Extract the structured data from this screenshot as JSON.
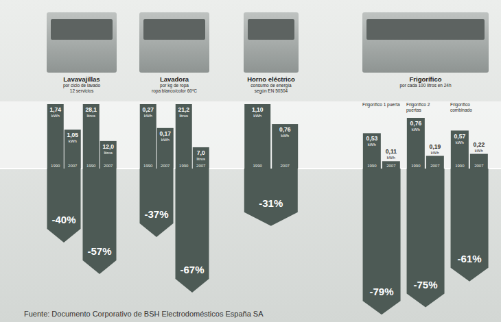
{
  "chart_data": [
    {
      "type": "bar",
      "title": "Lavavajillas",
      "subtitle": [
        "por ciclo de lavado",
        "12 servicios"
      ],
      "color": "#4d5a55",
      "panels": [
        {
          "categories": [
            "1990",
            "2007"
          ],
          "values": [
            1.74,
            1.05
          ],
          "value_labels": [
            "1,74 kWh",
            "1,05 kWh"
          ],
          "ylim": [
            0,
            1.74
          ],
          "change": {
            "value": -40,
            "label": "-40%"
          }
        },
        {
          "categories": [
            "1990",
            "2007"
          ],
          "values": [
            28.1,
            12.0
          ],
          "value_labels": [
            "28,1 litros",
            "12,0 litros"
          ],
          "ylim": [
            0,
            28.1
          ],
          "change": {
            "value": -57,
            "label": "-57%"
          }
        }
      ]
    },
    {
      "type": "bar",
      "title": "Lavadora",
      "subtitle": [
        "por kg de ropa",
        "ropa blanco/color 60ºC"
      ],
      "color": "#4d5a55",
      "panels": [
        {
          "categories": [
            "1990",
            "2007"
          ],
          "values": [
            0.27,
            0.17
          ],
          "value_labels": [
            "0,27 kWh",
            "0,17 kWh"
          ],
          "ylim": [
            0,
            0.27
          ],
          "change": {
            "value": -37,
            "label": "-37%"
          }
        },
        {
          "categories": [
            "1990",
            "2007"
          ],
          "values": [
            21.2,
            7.0
          ],
          "value_labels": [
            "21,2 litros",
            "7,0 litros"
          ],
          "ylim": [
            0,
            21.2
          ],
          "change": {
            "value": -67,
            "label": "-67%"
          }
        }
      ]
    },
    {
      "type": "bar",
      "title": "Horno eléctrico",
      "subtitle": [
        "consumo de energía",
        "según EN 50304"
      ],
      "color": "#4d5a55",
      "panels": [
        {
          "categories": [
            "1990",
            "2007"
          ],
          "values": [
            1.1,
            0.76
          ],
          "value_labels": [
            "1,10 kWh",
            "0,76 kWh"
          ],
          "ylim": [
            0,
            1.1
          ],
          "change": {
            "value": -31,
            "label": "-31%"
          }
        }
      ]
    },
    {
      "type": "bar",
      "title": "Frigorífico",
      "subtitle": [
        "por cada 100 litros en 24h"
      ],
      "color": "#4d5a55",
      "panels": [
        {
          "title": "Frigorífico 1 puerta",
          "categories": [
            "1990",
            "2007"
          ],
          "values": [
            0.53,
            0.11
          ],
          "value_labels": [
            "0,53 kWh",
            "0,11 kWh"
          ],
          "ylim": [
            0,
            0.76
          ],
          "change": {
            "value": -79,
            "label": "-79%"
          }
        },
        {
          "title": "Frigorífico 2 puertas",
          "categories": [
            "1990",
            "2007"
          ],
          "values": [
            0.76,
            0.19
          ],
          "value_labels": [
            "0,76 kWh",
            "0,19 kWh"
          ],
          "ylim": [
            0,
            0.76
          ],
          "change": {
            "value": -75,
            "label": "-75%"
          }
        },
        {
          "title": "Frigorífico combinado",
          "categories": [
            "1990",
            "2007"
          ],
          "values": [
            0.57,
            0.22
          ],
          "value_labels": [
            "0,57 kWh",
            "0,22 kWh"
          ],
          "ylim": [
            0,
            0.76
          ],
          "change": {
            "value": -61,
            "label": "-61%"
          }
        }
      ]
    }
  ],
  "change_ylim": [
    -80,
    0
  ],
  "source": "Fuente: Documento Corporativo de BSH Electrodomésticos España SA"
}
